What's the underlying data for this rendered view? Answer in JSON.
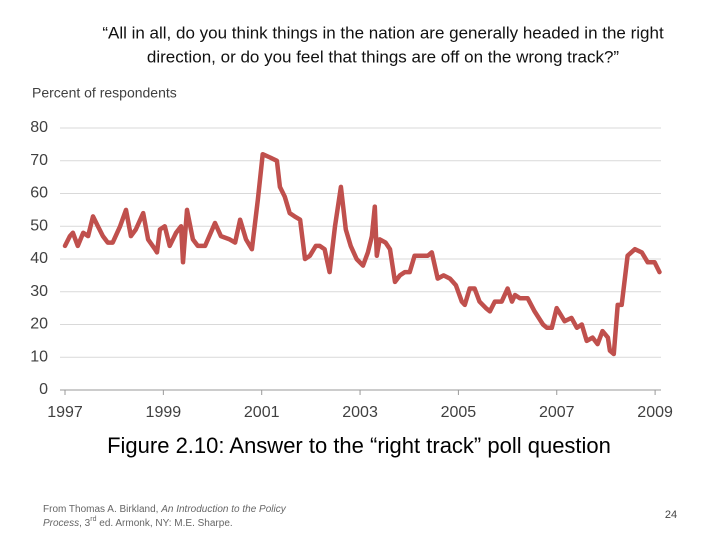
{
  "chart_data": {
    "type": "line",
    "title": [
      "“All in all, do you think things in the nation are generally headed in the right",
      "direction, or do you feel that things are off on the wrong track?”"
    ],
    "y_label": "Percent of respondents",
    "caption": "Figure 2.10: Answer to the “right track” poll question",
    "source": {
      "pre": "From Thomas A. Birkland, ",
      "book_a": "An Introduction to the Policy",
      "book_b": "Process",
      "mid": ", 3",
      "sup": "rd",
      "post": " ed. Armonk, NY: M.E. Sharpe."
    },
    "page_number": "24",
    "xlim": [
      1997,
      2009.12
    ],
    "xticks": [
      1997,
      1999,
      2001,
      2003,
      2005,
      2007,
      2009
    ],
    "ylim": [
      0,
      80
    ],
    "yticks": [
      0,
      10,
      20,
      30,
      40,
      50,
      60,
      70,
      80
    ],
    "grid": true,
    "x": [
      1997.0,
      1997.1,
      1997.16,
      1997.26,
      1997.37,
      1997.47,
      1997.57,
      1997.67,
      1997.77,
      1997.87,
      1997.97,
      1998.12,
      1998.24,
      1998.34,
      1998.44,
      1998.59,
      1998.69,
      1998.83,
      1998.87,
      1998.93,
      1999.03,
      1999.13,
      1999.26,
      1999.36,
      1999.4,
      1999.48,
      1999.6,
      1999.7,
      1999.85,
      2000.05,
      2000.17,
      2000.35,
      2000.46,
      2000.56,
      2000.68,
      2000.8,
      2000.92,
      2001.02,
      2001.17,
      2001.31,
      2001.37,
      2001.47,
      2001.57,
      2001.67,
      2001.78,
      2001.88,
      2001.98,
      2002.1,
      2002.18,
      2002.28,
      2002.38,
      2002.49,
      2002.61,
      2002.71,
      2002.81,
      2002.93,
      2003.06,
      2003.16,
      2003.24,
      2003.3,
      2003.34,
      2003.4,
      2003.52,
      2003.61,
      2003.71,
      2003.81,
      2003.91,
      2004.01,
      2004.11,
      2004.22,
      2004.38,
      2004.46,
      2004.58,
      2004.7,
      2004.83,
      2004.95,
      2005.07,
      2005.13,
      2005.23,
      2005.33,
      2005.43,
      2005.56,
      2005.64,
      2005.74,
      2005.88,
      2006.0,
      2006.09,
      2006.15,
      2006.25,
      2006.41,
      2006.55,
      2006.72,
      2006.8,
      2006.9,
      2007.0,
      2007.16,
      2007.3,
      2007.41,
      2007.51,
      2007.61,
      2007.73,
      2007.83,
      2007.93,
      2008.04,
      2008.08,
      2008.16,
      2008.24,
      2008.32,
      2008.44,
      2008.59,
      2008.73,
      2008.85,
      2008.99,
      2009.09
    ],
    "series": [
      {
        "name": "Right track",
        "color": "#c0504d",
        "values": [
          44,
          47,
          48,
          44,
          48,
          47,
          53,
          50,
          47,
          45,
          45,
          50,
          55,
          47,
          49,
          54,
          46,
          43,
          42,
          49,
          50,
          44,
          48,
          50,
          39,
          55,
          46,
          44,
          44,
          51,
          47,
          46,
          45,
          52,
          46,
          43,
          58,
          72,
          71,
          70,
          62,
          59,
          54,
          53,
          52,
          40,
          41,
          44,
          44,
          43,
          36,
          50,
          62,
          49,
          44,
          40,
          38,
          42,
          47,
          56,
          41,
          46,
          45,
          43,
          33,
          35,
          36,
          36,
          41,
          41,
          41,
          42,
          34,
          35,
          34,
          32,
          27,
          26,
          31,
          31,
          27,
          25,
          24,
          27,
          27,
          31,
          27,
          29,
          28,
          28,
          24,
          20,
          19,
          19,
          25,
          21,
          22,
          19,
          20,
          15,
          16,
          14,
          18,
          16,
          12,
          11,
          26,
          26,
          41,
          43,
          42,
          39,
          39,
          36
        ]
      }
    ]
  }
}
